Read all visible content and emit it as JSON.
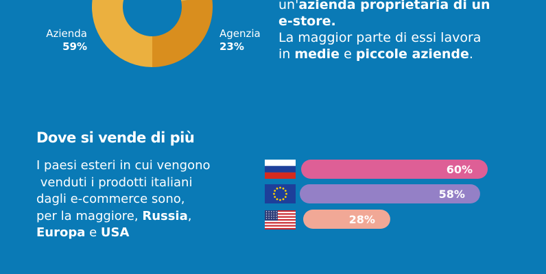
{
  "colors": {
    "background": "#0a7ab6",
    "donut_azienda": "#ebb03f",
    "donut_agenzia": "#d98e1e",
    "bar_russia": "#de5f96",
    "bar_europa": "#9480c6",
    "bar_usa": "#f1a896"
  },
  "donut": {
    "azienda": {
      "label": "Azienda",
      "pct": "59%",
      "value": 59
    },
    "agenzia": {
      "label": "Agenzia",
      "pct": "23%",
      "value": 23
    }
  },
  "top_text": {
    "line1_a": "un'",
    "line1_b": "azienda proprietaria di un",
    "line2": "e-store.",
    "line3": "La maggior parte di essi lavora",
    "line4_a": "in ",
    "line4_b": "medie",
    "line4_c": " e ",
    "line4_d": "piccole aziende",
    "line4_e": "."
  },
  "section": {
    "title": "Dove si vende di più",
    "body_1": "I paesi esteri in cui vengono",
    "body_2": " venduti i prodotti italiani",
    "body_3": "dagli e-commerce sono,",
    "body_4a": "per la maggiore, ",
    "body_4b": "Russia",
    "body_4c": ",",
    "body_5a": "Europa",
    "body_5b": " e ",
    "body_5c": "USA"
  },
  "chart_data": [
    {
      "type": "pie",
      "labels": [
        "Azienda",
        "Agenzia"
      ],
      "values": [
        59,
        23
      ]
    },
    {
      "type": "bar",
      "categories": [
        "Russia",
        "Europa",
        "USA"
      ],
      "values": [
        60,
        58,
        28
      ],
      "value_labels": [
        "60%",
        "58%",
        "28%"
      ],
      "icons": [
        "russia-flag-icon",
        "eu-flag-icon",
        "usa-flag-icon"
      ]
    }
  ]
}
